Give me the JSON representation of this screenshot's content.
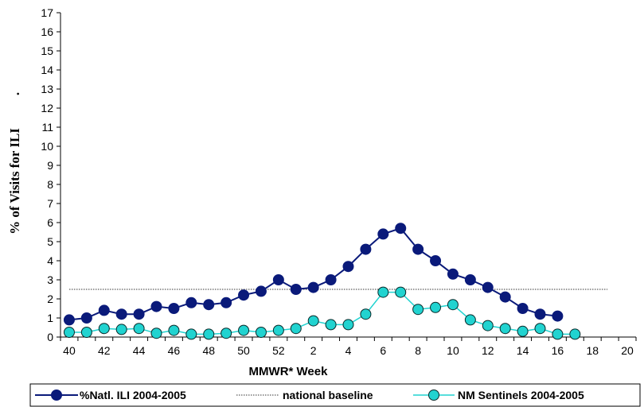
{
  "chart_data": {
    "type": "line",
    "xlabel": "MMWR* Week",
    "ylabel": "% of Visits for ILI",
    "ylabel_mark": ".",
    "ylim": [
      0,
      17
    ],
    "yticks": [
      0,
      1,
      2,
      3,
      4,
      5,
      6,
      7,
      8,
      9,
      10,
      11,
      12,
      13,
      14,
      15,
      16,
      17
    ],
    "x_categories": [
      "40",
      "41",
      "42",
      "43",
      "44",
      "45",
      "46",
      "47",
      "48",
      "49",
      "50",
      "51",
      "52",
      "1",
      "2",
      "3",
      "4",
      "5",
      "6",
      "7",
      "8",
      "9",
      "10",
      "11",
      "12",
      "13",
      "14",
      "15",
      "16",
      "17",
      "18",
      "19",
      "20"
    ],
    "x_tick_labels": [
      "40",
      "",
      "42",
      "",
      "44",
      "",
      "46",
      "",
      "48",
      "",
      "50",
      "",
      "52",
      "",
      "2",
      "",
      "4",
      "",
      "6",
      "",
      "8",
      "",
      "10",
      "",
      "12",
      "",
      "14",
      "",
      "16",
      "",
      "18",
      "",
      "20"
    ],
    "legend_position": "bottom",
    "grid": false,
    "series": [
      {
        "name": "%Natl. ILI 2004-2005",
        "color": "#0a1a7a",
        "marker": "circle",
        "values": [
          0.9,
          1.0,
          1.4,
          1.2,
          1.2,
          1.6,
          1.5,
          1.8,
          1.7,
          1.8,
          2.2,
          2.4,
          3.0,
          2.5,
          2.6,
          3.0,
          3.7,
          4.6,
          5.4,
          5.7,
          4.6,
          4.0,
          3.3,
          3.0,
          2.6,
          2.1,
          1.5,
          1.2,
          1.1
        ]
      },
      {
        "name": "national baseline",
        "color": "#333333",
        "style": "dotted",
        "value": 2.5
      },
      {
        "name": "NM Sentinels 2004-2005",
        "color": "#21d3d0",
        "marker": "circle",
        "values": [
          0.25,
          0.25,
          0.45,
          0.4,
          0.45,
          0.2,
          0.35,
          0.15,
          0.15,
          0.2,
          0.35,
          0.25,
          0.35,
          0.45,
          0.85,
          0.65,
          0.65,
          1.2,
          2.35,
          2.35,
          1.45,
          1.55,
          1.7,
          0.9,
          0.6,
          0.45,
          0.3,
          0.45,
          0.15,
          0.15
        ]
      }
    ]
  }
}
